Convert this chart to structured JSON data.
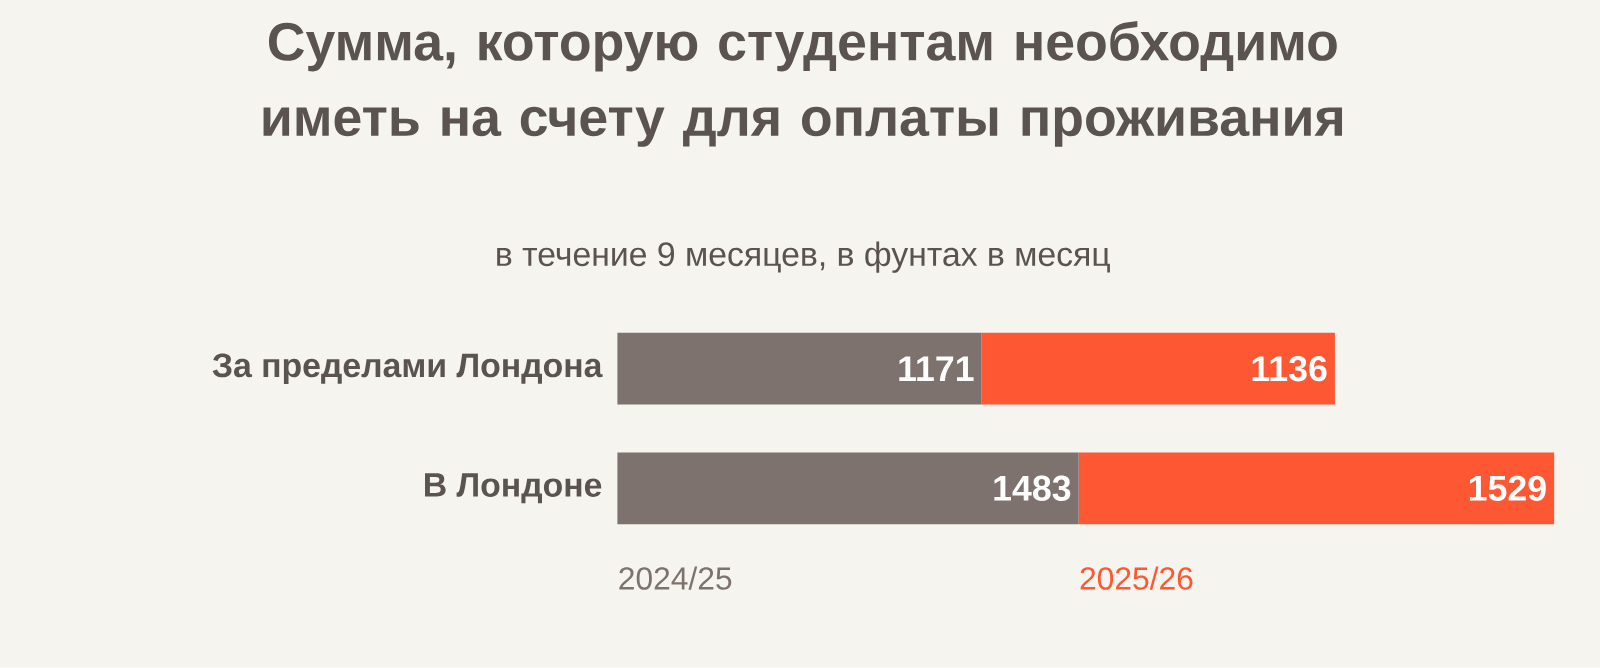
{
  "chart_data": {
    "type": "bar",
    "orientation": "horizontal",
    "stacked": true,
    "title": "Сумма, которую студентам необходимо иметь на счету для оплаты проживания",
    "subtitle": "в течение 9 месяцев, в фунтах в месяц",
    "categories": [
      "За пределами Лондона",
      "В Лондоне"
    ],
    "series": [
      {
        "name": "2024/25",
        "color": "#7d726d",
        "values": [
          1171,
          1483
        ]
      },
      {
        "name": "2025/26",
        "color": "#fe5733",
        "values": [
          1136,
          1529
        ]
      }
    ],
    "tick_labels": "y",
    "data_labels": true
  }
}
